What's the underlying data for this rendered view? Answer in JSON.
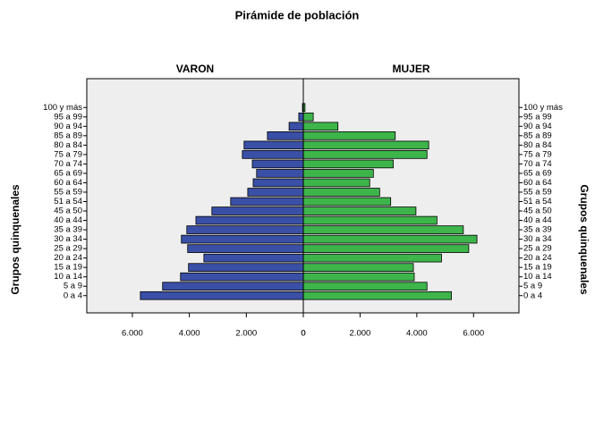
{
  "chart_data": {
    "type": "pyramid",
    "title": "Pirámide de población",
    "y_label": "Grupos quinquenales",
    "categories": [
      "0 a 4",
      "5 a 9",
      "10 a 14",
      "15 a 19",
      "20 a 24",
      "25 a 29",
      "30 a 34",
      "35 a 39",
      "40 a 44",
      "45 a 50",
      "51 a 54",
      "55 a 59",
      "60 a 64",
      "65 a 69",
      "70 a 74",
      "75 a 79",
      "80 a 84",
      "85 a 89",
      "90 a 94",
      "95 a 99",
      "100 y más"
    ],
    "series": [
      {
        "name": "VARON",
        "color": "#3a4fa6",
        "values": [
          5720,
          4940,
          4310,
          4030,
          3490,
          4060,
          4280,
          4090,
          3770,
          3210,
          2550,
          1950,
          1760,
          1640,
          1790,
          2140,
          2080,
          1260,
          500,
          160,
          30
        ]
      },
      {
        "name": "MUJER",
        "color": "#3db54a",
        "values": [
          5220,
          4360,
          3910,
          3880,
          4870,
          5830,
          6120,
          5640,
          4710,
          3970,
          3080,
          2690,
          2340,
          2470,
          3170,
          4360,
          4420,
          3240,
          1220,
          350,
          60
        ]
      }
    ],
    "xlim": [
      0,
      7600
    ],
    "xticks": [
      0,
      {
        "value": 2000,
        "label": "2.000"
      },
      {
        "value": 4000,
        "label": "4.000"
      },
      {
        "value": 6000,
        "label": "6.000"
      }
    ]
  }
}
